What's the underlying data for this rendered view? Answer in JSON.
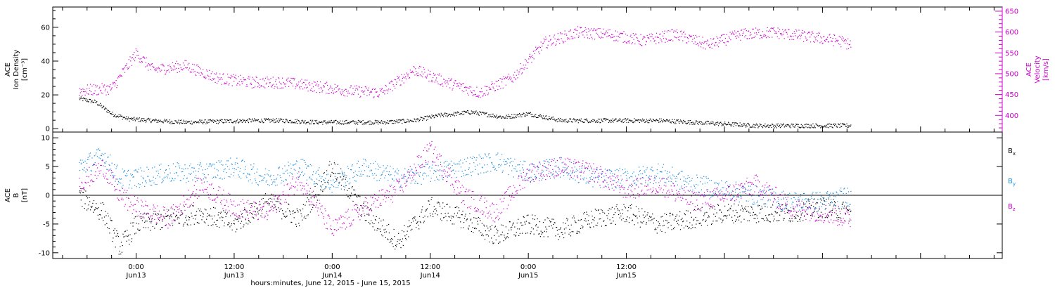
{
  "chart_data": [
    {
      "type": "scatter",
      "panel": "top",
      "ylabel_left": [
        "ACE",
        "Ion Density",
        "[cm⁻³]"
      ],
      "ylabel_right": [
        "ACE",
        "Velocity",
        "[km/s]"
      ],
      "ylim_left": [
        -2,
        72
      ],
      "yticks_left": [
        0,
        20,
        40,
        60
      ],
      "ylim_right": [
        360,
        660
      ],
      "yticks_right": [
        400,
        450,
        500,
        550,
        600,
        650
      ],
      "series": [
        {
          "axis": "left",
          "color": "#000000",
          "points": [
            [
              -7.0,
              18
            ],
            [
              -5.0,
              16
            ],
            [
              -3.0,
              9
            ],
            [
              -1.0,
              6
            ],
            [
              2.0,
              5
            ],
            [
              6.0,
              4
            ],
            [
              10.0,
              4.5
            ],
            [
              14.0,
              5
            ],
            [
              18.0,
              5
            ],
            [
              22.0,
              4
            ],
            [
              26.0,
              4
            ],
            [
              30.0,
              4
            ],
            [
              34.0,
              5
            ],
            [
              37.0,
              8
            ],
            [
              41.0,
              10
            ],
            [
              45.0,
              7
            ],
            [
              48.0,
              9
            ],
            [
              52.0,
              5
            ],
            [
              56.0,
              5
            ],
            [
              60.0,
              5
            ],
            [
              64.0,
              5
            ],
            [
              68.0,
              4
            ],
            [
              72.0,
              3
            ],
            [
              76.0,
              2
            ],
            [
              80.0,
              2
            ],
            [
              84.0,
              2
            ],
            [
              87.5,
              2
            ]
          ]
        },
        {
          "axis": "right",
          "color": "#cc00cc",
          "points": [
            [
              -7.0,
              460
            ],
            [
              -3.0,
              465
            ],
            [
              0.0,
              550
            ],
            [
              2.0,
              510
            ],
            [
              6.0,
              520
            ],
            [
              10.0,
              490
            ],
            [
              14.0,
              480
            ],
            [
              18.0,
              480
            ],
            [
              22.0,
              470
            ],
            [
              26.0,
              460
            ],
            [
              30.0,
              455
            ],
            [
              34.0,
              510
            ],
            [
              38.0,
              480
            ],
            [
              42.0,
              455
            ],
            [
              46.0,
              490
            ],
            [
              50.0,
              575
            ],
            [
              54.0,
              600
            ],
            [
              58.0,
              595
            ],
            [
              62.0,
              580
            ],
            [
              66.0,
              595
            ],
            [
              70.0,
              570
            ],
            [
              74.0,
              595
            ],
            [
              78.0,
              600
            ],
            [
              82.0,
              590
            ],
            [
              86.0,
              580
            ],
            [
              87.5,
              570
            ]
          ]
        }
      ]
    },
    {
      "type": "scatter",
      "panel": "bottom",
      "ylabel_left": [
        "ACE",
        "B",
        "[nT]"
      ],
      "ylim": [
        -11,
        11
      ],
      "yticks": [
        -10,
        -5,
        0,
        5,
        10
      ],
      "legend": "right",
      "series": [
        {
          "name": "Bx",
          "color": "#000000",
          "points": [
            [
              -7.0,
              0
            ],
            [
              -4.0,
              -3
            ],
            [
              -2.0,
              -9
            ],
            [
              0.0,
              -5
            ],
            [
              4.0,
              -4
            ],
            [
              8.0,
              -3
            ],
            [
              12.0,
              -5
            ],
            [
              16.0,
              -1
            ],
            [
              20.0,
              -4
            ],
            [
              24.0,
              5
            ],
            [
              28.0,
              -3
            ],
            [
              32.0,
              -8
            ],
            [
              36.0,
              -2
            ],
            [
              40.0,
              -4
            ],
            [
              44.0,
              -7
            ],
            [
              48.0,
              -5
            ],
            [
              52.0,
              -6
            ],
            [
              56.0,
              -4
            ],
            [
              60.0,
              -3
            ],
            [
              64.0,
              -5
            ],
            [
              68.0,
              -4
            ],
            [
              72.0,
              -3
            ],
            [
              76.0,
              -3
            ],
            [
              80.0,
              -3
            ],
            [
              84.0,
              -2
            ],
            [
              87.5,
              -3
            ]
          ]
        },
        {
          "name": "By",
          "color": "#1a8cdc",
          "points": [
            [
              -7.0,
              5
            ],
            [
              -4.0,
              7
            ],
            [
              -2.0,
              3
            ],
            [
              0.0,
              3
            ],
            [
              4.0,
              4
            ],
            [
              8.0,
              4
            ],
            [
              12.0,
              5
            ],
            [
              16.0,
              3
            ],
            [
              20.0,
              5
            ],
            [
              24.0,
              2
            ],
            [
              28.0,
              5
            ],
            [
              32.0,
              3
            ],
            [
              36.0,
              4
            ],
            [
              40.0,
              5
            ],
            [
              44.0,
              6
            ],
            [
              48.0,
              4
            ],
            [
              52.0,
              5
            ],
            [
              56.0,
              3
            ],
            [
              60.0,
              3
            ],
            [
              64.0,
              4
            ],
            [
              68.0,
              2
            ],
            [
              72.0,
              1
            ],
            [
              76.0,
              0
            ],
            [
              80.0,
              -1
            ],
            [
              84.0,
              -1
            ],
            [
              87.5,
              0
            ]
          ]
        },
        {
          "name": "Bz",
          "color": "#cc00cc",
          "points": [
            [
              -7.0,
              2
            ],
            [
              -4.0,
              5
            ],
            [
              -2.0,
              0
            ],
            [
              0.0,
              -2
            ],
            [
              4.0,
              -4
            ],
            [
              8.0,
              2
            ],
            [
              12.0,
              -2
            ],
            [
              16.0,
              -3
            ],
            [
              20.0,
              3
            ],
            [
              24.0,
              -6
            ],
            [
              28.0,
              -2
            ],
            [
              32.0,
              1
            ],
            [
              36.0,
              8
            ],
            [
              40.0,
              0
            ],
            [
              44.0,
              -3
            ],
            [
              48.0,
              4
            ],
            [
              52.0,
              5
            ],
            [
              56.0,
              4
            ],
            [
              60.0,
              1
            ],
            [
              64.0,
              2
            ],
            [
              68.0,
              -1
            ],
            [
              72.0,
              0
            ],
            [
              76.0,
              2
            ],
            [
              80.0,
              -2
            ],
            [
              84.0,
              -3
            ],
            [
              87.5,
              -4
            ]
          ]
        }
      ]
    }
  ],
  "legend": {
    "bx": {
      "base": "B",
      "sub": "x",
      "color": "#000000"
    },
    "by": {
      "base": "B",
      "sub": "y",
      "color": "#1a8cdc"
    },
    "bz": {
      "base": "B",
      "sub": "z",
      "color": "#cc00cc"
    }
  },
  "x_axis": {
    "xlim_hours": [
      -10.2,
      106
    ],
    "major_ticks": [
      {
        "hour": 0,
        "time": "0:00",
        "date": "Jun13"
      },
      {
        "hour": 12,
        "time": "12:00",
        "date": "Jun13"
      },
      {
        "hour": 24,
        "time": "0:00",
        "date": "Jun14"
      },
      {
        "hour": 36,
        "time": "12:00",
        "date": "Jun14"
      },
      {
        "hour": 48,
        "time": "0:00",
        "date": "Jun15"
      },
      {
        "hour": 60,
        "time": "12:00",
        "date": "Jun15"
      }
    ],
    "title": "hours:minutes, June 12, 2015 - June 15, 2015"
  },
  "colors": {
    "density": "#000000",
    "velocity": "#cc00cc",
    "bx": "#000000",
    "by": "#1a8cdc",
    "bz": "#cc00cc",
    "axis": "#000000"
  }
}
